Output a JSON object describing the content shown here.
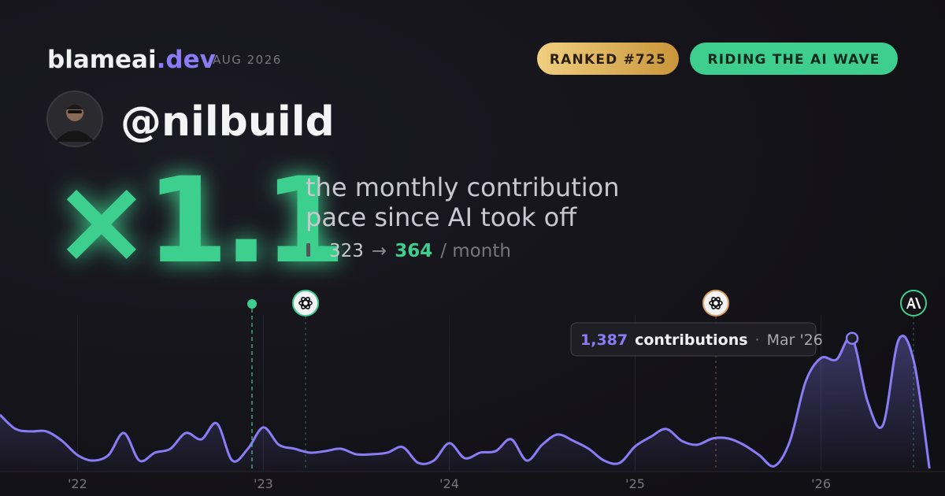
{
  "header": {
    "brand": "blameai",
    "tld": ".dev",
    "date": "AUG 2026",
    "badges": [
      "RANKED #725",
      "RIDING THE AI WAVE"
    ]
  },
  "profile": {
    "handle": "@nilbuild"
  },
  "headline": {
    "multiplier": "×1.1",
    "description": [
      "the monthly contribution",
      "pace since AI took off"
    ],
    "before": 323,
    "arrow": "→",
    "after": 364,
    "unit": "/ month"
  },
  "tooltip": {
    "value": "1,387",
    "label": "contributions",
    "separator": "·",
    "date": "Mar '26"
  },
  "chart_data": {
    "type": "area",
    "color": "#8b7cf6",
    "grid": true,
    "x": [
      2021.583,
      2021.667,
      2021.75,
      2021.833,
      2021.917,
      2022,
      2022.083,
      2022.167,
      2022.25,
      2022.333,
      2022.417,
      2022.5,
      2022.583,
      2022.667,
      2022.75,
      2022.833,
      2022.917,
      2023,
      2023.083,
      2023.167,
      2023.25,
      2023.333,
      2023.417,
      2023.5,
      2023.583,
      2023.667,
      2023.75,
      2023.833,
      2023.917,
      2024,
      2024.083,
      2024.167,
      2024.25,
      2024.333,
      2024.417,
      2024.5,
      2024.583,
      2024.667,
      2024.75,
      2024.833,
      2024.917,
      2025,
      2025.083,
      2025.167,
      2025.25,
      2025.333,
      2025.417,
      2025.5,
      2025.583,
      2025.667,
      2025.75,
      2025.833,
      2025.917,
      2026,
      2026.083,
      2026.167,
      2026.25,
      2026.333,
      2026.417,
      2026.5,
      2026.583
    ],
    "values": [
      586,
      438,
      413,
      413,
      314,
      165,
      107,
      165,
      396,
      107,
      190,
      231,
      396,
      330,
      496,
      107,
      231,
      454,
      273,
      231,
      190,
      206,
      231,
      173,
      173,
      190,
      248,
      83,
      107,
      289,
      132,
      190,
      206,
      330,
      107,
      273,
      380,
      314,
      231,
      107,
      83,
      256,
      355,
      438,
      314,
      273,
      339,
      339,
      273,
      165,
      50,
      314,
      933,
      1181,
      1165,
      1387,
      727,
      479,
      1371,
      1140,
      25
    ],
    "xlim": [
      2021.5833,
      2026.6667
    ],
    "xticks": [
      {
        "value": 2022,
        "label": "'22"
      },
      {
        "value": 2023,
        "label": "'23"
      },
      {
        "value": 2024,
        "label": "'24"
      },
      {
        "value": 2025,
        "label": "'25"
      },
      {
        "value": 2026,
        "label": "'26"
      }
    ],
    "ylim": [
      0,
      1500
    ]
  }
}
